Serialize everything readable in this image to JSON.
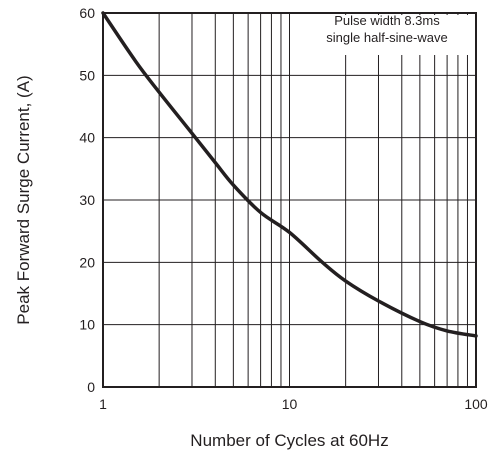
{
  "chart_data": {
    "type": "line",
    "title": "",
    "xlabel": "Number of Cycles at 60Hz",
    "ylabel": "Peak Forward Surge Current, (A)",
    "x_scale": "log",
    "xlim": [
      1,
      100
    ],
    "ylim": [
      0,
      60
    ],
    "x_ticks": [
      1,
      10,
      100
    ],
    "x_tick_labels": [
      "1",
      "10",
      "100"
    ],
    "y_ticks": [
      0,
      10,
      20,
      30,
      40,
      50,
      60
    ],
    "y_tick_labels": [
      "0",
      "10",
      "20",
      "30",
      "40",
      "50",
      "60"
    ],
    "grid": true,
    "annotation": [
      "Pulse width 8.3ms",
      "single half-sine-wave"
    ],
    "series": [
      {
        "x": [
          1,
          1.5,
          2,
          3,
          4,
          5,
          7,
          10,
          15,
          20,
          30,
          50,
          70,
          100
        ],
        "y": [
          60,
          52.2,
          47.3,
          40.7,
          36.0,
          32.4,
          28.0,
          24.8,
          20.0,
          17.0,
          13.8,
          10.5,
          9.0,
          8.2
        ]
      }
    ],
    "line_color": "#231f20"
  }
}
